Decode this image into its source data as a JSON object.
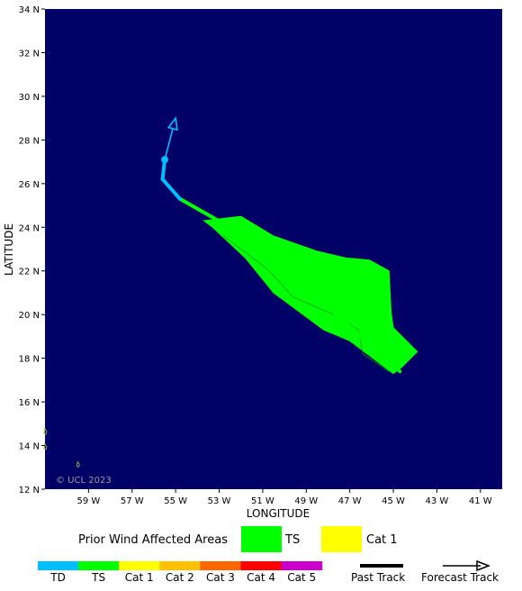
{
  "map": {
    "background_color": "#000066",
    "axes": {
      "xlabel": "LONGITUDE",
      "ylabel": "LATITUDE",
      "lon_range": [
        -61,
        -40
      ],
      "lat_range": [
        12,
        34
      ],
      "x_ticks": [
        "59 W",
        "57 W",
        "55 W",
        "53 W",
        "51 W",
        "49 W",
        "47 W",
        "45 W",
        "43 W",
        "41 W"
      ],
      "y_ticks": [
        "12 N",
        "14 N",
        "16 N",
        "18 N",
        "20 N",
        "22 N",
        "24 N",
        "26 N",
        "28 N",
        "30 N",
        "32 N",
        "34 N"
      ]
    },
    "copyright": "© UCL 2023",
    "past_track": [
      [
        -44.7,
        17.4
      ],
      [
        -46.5,
        19.0
      ],
      [
        -48.5,
        20.8
      ],
      [
        -50.5,
        22.6
      ],
      [
        -52.5,
        24.0
      ],
      [
        -54.8,
        25.3
      ],
      [
        -55.6,
        26.2
      ],
      [
        -55.5,
        27.1
      ]
    ],
    "forecast_track": [
      [
        -55.5,
        27.1
      ],
      [
        -55.0,
        29.0
      ]
    ],
    "current_position": [
      -55.5,
      27.1
    ],
    "ts_wind_area": [
      [
        -53.7,
        24.3
      ],
      [
        -52.0,
        24.5
      ],
      [
        -50.5,
        23.6
      ],
      [
        -48.5,
        22.9
      ],
      [
        -47.2,
        22.6
      ],
      [
        -46.1,
        22.5
      ],
      [
        -45.2,
        22.0
      ],
      [
        -45.1,
        20.1
      ],
      [
        -45.0,
        19.4
      ],
      [
        -43.9,
        18.3
      ],
      [
        -44.6,
        17.6
      ],
      [
        -45.0,
        17.3
      ],
      [
        -47.0,
        18.8
      ],
      [
        -48.2,
        19.3
      ],
      [
        -50.5,
        21.0
      ],
      [
        -51.8,
        22.6
      ],
      [
        -53.3,
        24.0
      ]
    ],
    "island_marks": [
      [
        -61.0,
        14.6
      ],
      [
        -61.0,
        13.9
      ],
      [
        -59.5,
        13.1
      ]
    ]
  },
  "legend": {
    "title": "Prior Wind Affected Areas",
    "items": [
      {
        "label": "TS",
        "color": "#00ff00"
      },
      {
        "label": "Cat 1",
        "color": "#ffff00"
      }
    ]
  },
  "scale": [
    {
      "label": "TD",
      "color": "#00bfff"
    },
    {
      "label": "TS",
      "color": "#00ff00"
    },
    {
      "label": "Cat 1",
      "color": "#ffff00"
    },
    {
      "label": "Cat 2",
      "color": "#ffc000"
    },
    {
      "label": "Cat 3",
      "color": "#ff6600"
    },
    {
      "label": "Cat 4",
      "color": "#ff0000"
    },
    {
      "label": "Cat 5",
      "color": "#cc00cc"
    }
  ],
  "track_legend": {
    "past": "Past Track",
    "forecast": "Forecast Track"
  },
  "colors": {
    "track_cyan": "#00bfff",
    "track_green": "#00ff00"
  }
}
